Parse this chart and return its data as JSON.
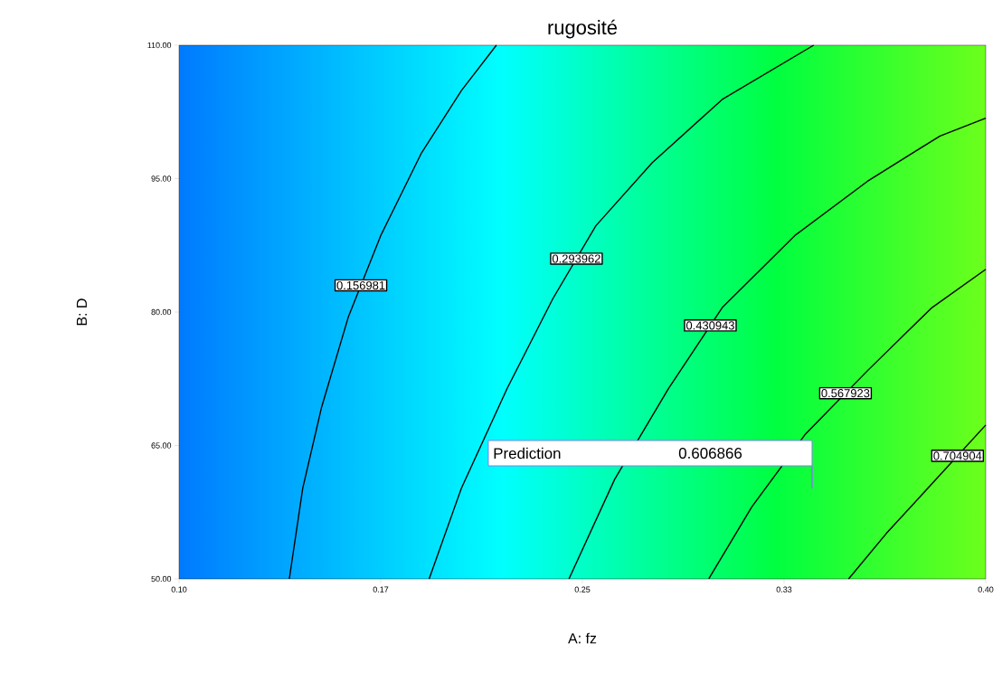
{
  "chart_data": {
    "type": "line",
    "title": "rugosité",
    "xlabel": "A: fz",
    "ylabel": "B: D",
    "xlim": [
      0.1,
      0.4
    ],
    "ylim": [
      50,
      110
    ],
    "xticks": [
      {
        "value": 0.1,
        "label": "0.10"
      },
      {
        "value": 0.175,
        "label": "0.17"
      },
      {
        "value": 0.25,
        "label": "0.25"
      },
      {
        "value": 0.325,
        "label": "0.33"
      },
      {
        "value": 0.4,
        "label": "0.40"
      }
    ],
    "yticks": [
      {
        "value": 50,
        "label": "50.00"
      },
      {
        "value": 65,
        "label": "65.00"
      },
      {
        "value": 80,
        "label": "80.00"
      },
      {
        "value": 95,
        "label": "95.00"
      },
      {
        "value": 110,
        "label": "110.00"
      }
    ],
    "series": [
      {
        "name": "0.156981",
        "color": "#000000",
        "x": [
          0.141,
          0.146,
          0.153,
          0.163,
          0.175,
          0.19,
          0.205,
          0.218
        ],
        "values": [
          50,
          60.2,
          69.3,
          79.5,
          88.6,
          97.8,
          104.9,
          110
        ]
      },
      {
        "name": "0.293962",
        "color": "#000000",
        "x": [
          0.193,
          0.205,
          0.222,
          0.239,
          0.255,
          0.276,
          0.302,
          0.336
        ],
        "values": [
          50,
          60.2,
          71.4,
          81.5,
          89.7,
          96.8,
          103.9,
          110
        ]
      },
      {
        "name": "0.430943",
        "color": "#000000",
        "x": [
          0.245,
          0.262,
          0.282,
          0.302,
          0.329,
          0.356,
          0.383,
          0.4
        ],
        "values": [
          50,
          61.2,
          71.4,
          80.5,
          88.6,
          94.7,
          99.8,
          101.8
        ]
      },
      {
        "name": "0.567923",
        "color": "#000000",
        "x": [
          0.297,
          0.313,
          0.333,
          0.356,
          0.38,
          0.4
        ],
        "values": [
          50,
          58.1,
          66.3,
          73.4,
          80.5,
          84.8
        ]
      },
      {
        "name": "0.704904",
        "color": "#000000",
        "x": [
          0.349,
          0.363,
          0.38,
          0.4
        ],
        "values": [
          50,
          55.1,
          60.7,
          67.3
        ]
      }
    ],
    "annotations": [
      "Prediction",
      "0.606866"
    ]
  }
}
